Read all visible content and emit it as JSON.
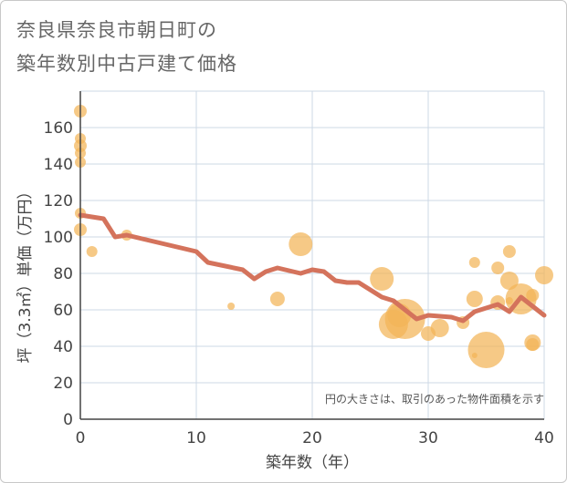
{
  "title_lines": [
    "奈良県奈良市朝日町の",
    "築年数別中古戸建て価格"
  ],
  "note": "円の大きさは、取引のあった物件面積を示す",
  "colors": {
    "bubble": "#f2b457",
    "line": "#d4735c",
    "grid": "#cdd8e6",
    "axis": "#444444",
    "title": "#666666"
  },
  "chart_data": {
    "type": "scatter",
    "xlabel": "築年数（年）",
    "ylabel": "坪（3.3㎡）単価（万円）",
    "xlim": [
      0,
      40
    ],
    "ylim": [
      0,
      180
    ],
    "x_ticks": [
      0,
      10,
      20,
      30,
      40
    ],
    "y_ticks": [
      0,
      20,
      40,
      60,
      80,
      100,
      120,
      140,
      160
    ],
    "grid": true,
    "bubbles": [
      {
        "x": 0,
        "y": 169,
        "s": 7
      },
      {
        "x": 0,
        "y": 154,
        "s": 6
      },
      {
        "x": 0,
        "y": 150,
        "s": 7
      },
      {
        "x": 0,
        "y": 146,
        "s": 6
      },
      {
        "x": 0,
        "y": 141,
        "s": 6
      },
      {
        "x": 0,
        "y": 113,
        "s": 6
      },
      {
        "x": 0,
        "y": 104,
        "s": 7
      },
      {
        "x": 1,
        "y": 92,
        "s": 6
      },
      {
        "x": 4,
        "y": 101,
        "s": 6
      },
      {
        "x": 13,
        "y": 62,
        "s": 4
      },
      {
        "x": 17,
        "y": 66,
        "s": 8
      },
      {
        "x": 19,
        "y": 96,
        "s": 13
      },
      {
        "x": 26,
        "y": 77,
        "s": 13
      },
      {
        "x": 27,
        "y": 52,
        "s": 16
      },
      {
        "x": 27.5,
        "y": 57,
        "s": 13
      },
      {
        "x": 28,
        "y": 55,
        "s": 22
      },
      {
        "x": 30,
        "y": 47,
        "s": 8
      },
      {
        "x": 31,
        "y": 50,
        "s": 10
      },
      {
        "x": 33,
        "y": 53,
        "s": 7
      },
      {
        "x": 34,
        "y": 86,
        "s": 6
      },
      {
        "x": 34,
        "y": 66,
        "s": 9
      },
      {
        "x": 34,
        "y": 35,
        "s": 3
      },
      {
        "x": 35,
        "y": 38,
        "s": 20
      },
      {
        "x": 36,
        "y": 83,
        "s": 7
      },
      {
        "x": 36,
        "y": 64,
        "s": 8
      },
      {
        "x": 37,
        "y": 92,
        "s": 7
      },
      {
        "x": 37,
        "y": 76,
        "s": 10
      },
      {
        "x": 37,
        "y": 65,
        "s": 4
      },
      {
        "x": 38,
        "y": 66,
        "s": 17
      },
      {
        "x": 39,
        "y": 68,
        "s": 7
      },
      {
        "x": 39,
        "y": 42,
        "s": 9
      },
      {
        "x": 39,
        "y": 41,
        "s": 7
      },
      {
        "x": 40,
        "y": 79,
        "s": 10
      }
    ],
    "line": {
      "x": [
        0,
        2,
        3,
        4,
        10,
        11,
        14,
        15,
        16,
        17,
        19,
        20,
        21,
        22,
        23,
        24,
        26,
        27,
        28,
        29,
        30,
        32,
        33,
        34,
        36,
        37,
        38,
        39,
        40
      ],
      "y": [
        112,
        110,
        100,
        101,
        92,
        86,
        82,
        77,
        81,
        83,
        80,
        82,
        81,
        76,
        75,
        75,
        67,
        65,
        60,
        55,
        57,
        56,
        54,
        59,
        63,
        59,
        67,
        62,
        57
      ]
    }
  }
}
